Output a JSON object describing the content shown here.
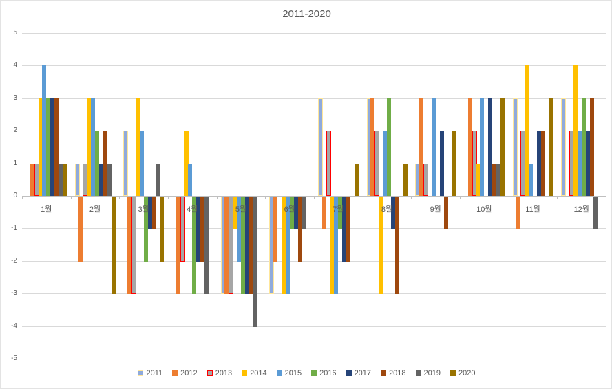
{
  "chart_data": {
    "type": "bar",
    "title": "2011-2020",
    "categories": [
      "1월",
      "2월",
      "3월",
      "4월",
      "5월",
      "6월",
      "7월",
      "8월",
      "9월",
      "10월",
      "11월",
      "12월"
    ],
    "series": [
      {
        "name": "2011",
        "color": "#8FAADC",
        "border_color": "#FFE699",
        "values": [
          0,
          1,
          2,
          0,
          -3,
          -3,
          3,
          3,
          1,
          0,
          3,
          3
        ]
      },
      {
        "name": "2012",
        "color": "#ED7D31",
        "border_color": null,
        "values": [
          1,
          -2,
          -3,
          -3,
          -3,
          -2,
          -1,
          3,
          3,
          3,
          -1,
          0
        ]
      },
      {
        "name": "2013",
        "color": "#A6A6A6",
        "border_color": "#FF0000",
        "values": [
          1,
          1,
          -3,
          -2,
          -3,
          0,
          2,
          2,
          1,
          2,
          2,
          2
        ]
      },
      {
        "name": "2014",
        "color": "#FFC000",
        "border_color": null,
        "values": [
          3,
          3,
          3,
          2,
          -1,
          -3,
          -3,
          -3,
          0,
          1,
          4,
          4
        ]
      },
      {
        "name": "2015",
        "color": "#5B9BD5",
        "border_color": null,
        "values": [
          4,
          3,
          2,
          1,
          -2,
          -3,
          -3,
          2,
          3,
          3,
          1,
          2
        ]
      },
      {
        "name": "2016",
        "color": "#70AD47",
        "border_color": null,
        "values": [
          3,
          2,
          -2,
          -3,
          -3,
          -1,
          -1,
          3,
          0,
          0,
          0,
          3
        ]
      },
      {
        "name": "2017",
        "color": "#264478",
        "border_color": null,
        "values": [
          3,
          1,
          -1,
          -2,
          -3,
          -1,
          -2,
          -1,
          2,
          3,
          2,
          2
        ]
      },
      {
        "name": "2018",
        "color": "#9E480E",
        "border_color": null,
        "values": [
          3,
          2,
          -1,
          -2,
          -3,
          -2,
          -2,
          -3,
          -1,
          1,
          2,
          3
        ]
      },
      {
        "name": "2019",
        "color": "#636363",
        "border_color": null,
        "values": [
          1,
          1,
          1,
          -3,
          -4,
          -1,
          0,
          0,
          0,
          1,
          0,
          -1
        ]
      },
      {
        "name": "2020",
        "color": "#997300",
        "border_color": null,
        "values": [
          1,
          -3,
          -2,
          0,
          0,
          0,
          1,
          1,
          2,
          3,
          3,
          0
        ]
      }
    ],
    "ylabel": "",
    "xlabel": "",
    "ylim": [
      -5,
      5
    ],
    "y_ticks": [
      5,
      4,
      3,
      2,
      1,
      0,
      -1,
      -2,
      -3,
      -4,
      -5
    ],
    "grid": true,
    "legend_position": "bottom",
    "text_color": "#595959",
    "grid_color": "#D9D9D9"
  }
}
